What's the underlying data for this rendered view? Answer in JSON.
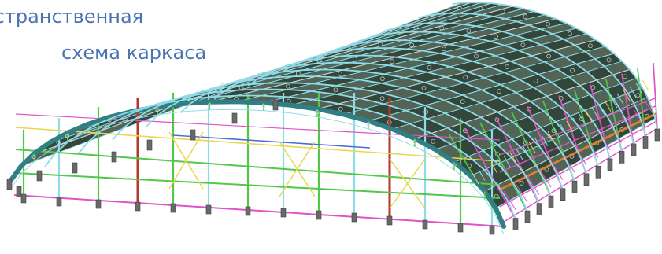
{
  "caption": {
    "line1": "остранственная",
    "line2": "схема каркаса"
  },
  "drawing": {
    "arch_count": 14,
    "colors": {
      "background": "#ffffff",
      "caption": "#4a74b0",
      "roof_panel": "#2b3f31",
      "roof_panel_alt": "#4b5e4f",
      "main_arch": "#2f7f85",
      "roof_grid_cyan": "#8fdbe8",
      "green": "#53c74a",
      "magenta": "#e052c7",
      "yellow": "#e8d84f",
      "orange": "#d98332",
      "red": "#b33a2b",
      "blue": "#4c6bd7",
      "column": "#696969",
      "column_shadow": "#3f3f3f",
      "light_gray": "#cfd4d6"
    }
  }
}
